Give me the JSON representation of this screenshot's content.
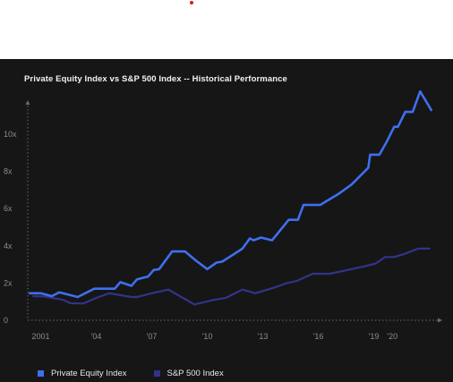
{
  "decor": {
    "dot_color": "#d21f1f"
  },
  "chart_data": {
    "type": "line",
    "title": "Private Equity Index vs S&P 500 Index -- Historical Performance",
    "xlabel": "",
    "ylabel": "",
    "xlim": [
      2000.3,
      2022.6
    ],
    "ylim": [
      0,
      12.6
    ],
    "y_ticks": [
      {
        "value": 0,
        "label": "0"
      },
      {
        "value": 2,
        "label": "2x"
      },
      {
        "value": 4,
        "label": "4x"
      },
      {
        "value": 6,
        "label": "6x"
      },
      {
        "value": 8,
        "label": "8x"
      },
      {
        "value": 10,
        "label": "10x"
      }
    ],
    "x_ticks": [
      {
        "value": 2001,
        "label": "2001"
      },
      {
        "value": 2004,
        "label": "'04"
      },
      {
        "value": 2007,
        "label": "'07"
      },
      {
        "value": 2010,
        "label": "'10"
      },
      {
        "value": 2013,
        "label": "'13"
      },
      {
        "value": 2016,
        "label": "'16"
      },
      {
        "value": 2019,
        "label": "'19"
      },
      {
        "value": 2020,
        "label": "'20"
      }
    ],
    "grid": false,
    "legend_position": "bottom-left",
    "series": [
      {
        "name": "Private Equity Index",
        "color": "#3f6ff0",
        "points": [
          [
            2000.4,
            1.45
          ],
          [
            2001.0,
            1.45
          ],
          [
            2001.6,
            1.3
          ],
          [
            2002.0,
            1.5
          ],
          [
            2002.6,
            1.35
          ],
          [
            2003.0,
            1.25
          ],
          [
            2003.9,
            1.7
          ],
          [
            2004.6,
            1.7
          ],
          [
            2005.0,
            1.7
          ],
          [
            2005.3,
            2.05
          ],
          [
            2005.9,
            1.85
          ],
          [
            2006.2,
            2.2
          ],
          [
            2006.8,
            2.35
          ],
          [
            2007.1,
            2.7
          ],
          [
            2007.4,
            2.75
          ],
          [
            2008.1,
            3.7
          ],
          [
            2008.8,
            3.7
          ],
          [
            2009.4,
            3.2
          ],
          [
            2010.0,
            2.75
          ],
          [
            2010.5,
            3.1
          ],
          [
            2010.8,
            3.15
          ],
          [
            2011.2,
            3.4
          ],
          [
            2011.9,
            3.85
          ],
          [
            2012.3,
            4.4
          ],
          [
            2012.5,
            4.3
          ],
          [
            2012.9,
            4.45
          ],
          [
            2013.5,
            4.3
          ],
          [
            2014.4,
            5.4
          ],
          [
            2014.9,
            5.4
          ],
          [
            2015.2,
            6.2
          ],
          [
            2016.1,
            6.2
          ],
          [
            2017.1,
            6.8
          ],
          [
            2017.8,
            7.3
          ],
          [
            2018.7,
            8.2
          ],
          [
            2018.8,
            8.9
          ],
          [
            2019.3,
            8.9
          ],
          [
            2019.7,
            9.6
          ],
          [
            2020.1,
            10.4
          ],
          [
            2020.3,
            10.4
          ],
          [
            2020.7,
            11.2
          ],
          [
            2021.1,
            11.2
          ],
          [
            2021.5,
            12.3
          ],
          [
            2022.1,
            11.3
          ]
        ]
      },
      {
        "name": "S&P 500 Index",
        "color": "#33338a",
        "points": [
          [
            2000.6,
            1.3
          ],
          [
            2001.2,
            1.28
          ],
          [
            2002.2,
            1.1
          ],
          [
            2002.6,
            0.92
          ],
          [
            2003.3,
            0.9
          ],
          [
            2004.0,
            1.2
          ],
          [
            2004.7,
            1.45
          ],
          [
            2005.9,
            1.25
          ],
          [
            2006.2,
            1.25
          ],
          [
            2007.0,
            1.45
          ],
          [
            2007.9,
            1.65
          ],
          [
            2008.6,
            1.25
          ],
          [
            2009.3,
            0.85
          ],
          [
            2010.4,
            1.1
          ],
          [
            2011.0,
            1.2
          ],
          [
            2011.9,
            1.65
          ],
          [
            2012.6,
            1.45
          ],
          [
            2013.6,
            1.75
          ],
          [
            2014.3,
            2.0
          ],
          [
            2014.8,
            2.1
          ],
          [
            2015.7,
            2.5
          ],
          [
            2016.6,
            2.5
          ],
          [
            2017.1,
            2.6
          ],
          [
            2017.8,
            2.75
          ],
          [
            2018.5,
            2.9
          ],
          [
            2019.1,
            3.05
          ],
          [
            2019.6,
            3.4
          ],
          [
            2020.1,
            3.4
          ],
          [
            2020.6,
            3.55
          ],
          [
            2021.4,
            3.85
          ],
          [
            2022.0,
            3.85
          ]
        ]
      }
    ]
  }
}
